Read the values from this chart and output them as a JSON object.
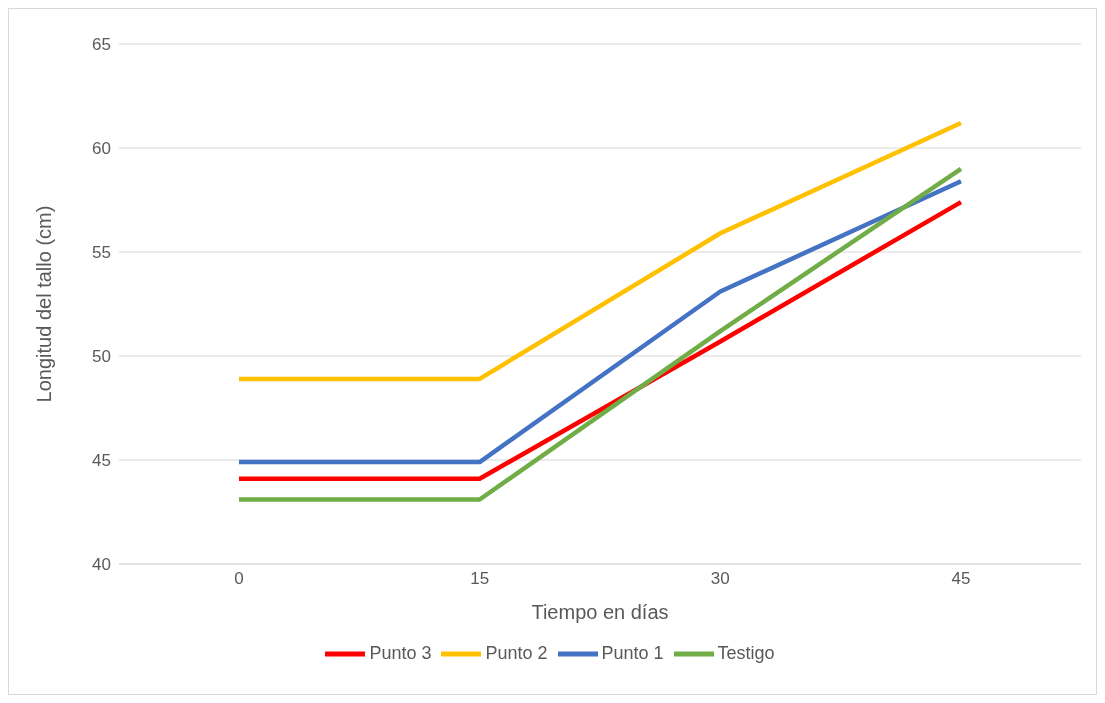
{
  "chart_data": {
    "type": "line",
    "xlabel": "Tiempo en días",
    "ylabel": "Longitud del tallo (cm)",
    "categories": [
      "0",
      "15",
      "30",
      "45"
    ],
    "series": [
      {
        "name": "Punto 3",
        "color": "#ff0000",
        "values": [
          44.1,
          44.1,
          50.7,
          57.4
        ]
      },
      {
        "name": "Punto 2",
        "color": "#ffc000",
        "values": [
          48.9,
          48.9,
          55.9,
          61.2
        ]
      },
      {
        "name": "Punto 1",
        "color": "#4472c4",
        "values": [
          44.9,
          44.9,
          53.1,
          58.4
        ]
      },
      {
        "name": "Testigo",
        "color": "#70ad47",
        "values": [
          43.1,
          43.1,
          51.2,
          59.0
        ]
      }
    ],
    "ylim": [
      40,
      65
    ],
    "yticks": [
      40,
      45,
      50,
      55,
      60,
      65
    ],
    "grid": "y",
    "legend": "bottom",
    "marker": "none",
    "line_style": "solid"
  }
}
